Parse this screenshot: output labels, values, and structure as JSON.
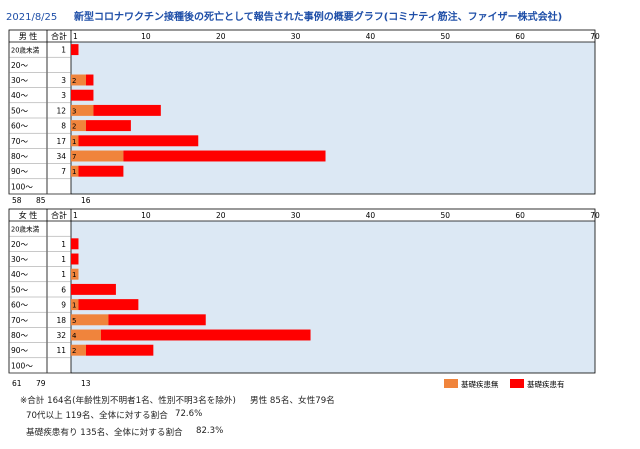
{
  "header": {
    "date": "2021/8/25",
    "title": "新型コロナワクチン接種後の死亡として報告された事例の概要グラフ(コミナティ筋注、ファイザー株式会社)"
  },
  "colors": {
    "without": "#f0843c",
    "with": "#ff0000",
    "plot_bg": "#dce8f4",
    "title": "#1f4fa8"
  },
  "chart_data": [
    {
      "type": "bar",
      "stacked": true,
      "orientation": "horizontal",
      "panel_label": "男 性",
      "total_header": "合計",
      "xlim": [
        0,
        70
      ],
      "xticks": [
        "1",
        "10",
        "20",
        "30",
        "40",
        "50",
        "60",
        "70"
      ],
      "xtick_values": [
        1,
        10,
        20,
        30,
        40,
        50,
        60,
        70
      ],
      "categories": [
        "20歳未満",
        "20～",
        "30～",
        "40～",
        "50～",
        "60～",
        "70～",
        "80～",
        "90～",
        "100～"
      ],
      "totals": [
        "1",
        "",
        "3",
        "3",
        "12",
        "8",
        "17",
        "34",
        "7",
        ""
      ],
      "series": [
        {
          "name": "基礎疾患無",
          "values": [
            0,
            0,
            2,
            0,
            3,
            2,
            1,
            7,
            1,
            0
          ],
          "labels": [
            "",
            "",
            "2",
            "",
            "3",
            "2",
            "1",
            "7",
            "1",
            ""
          ]
        },
        {
          "name": "基礎疾患有",
          "values": [
            1,
            0,
            1,
            3,
            9,
            6,
            16,
            27,
            6,
            0
          ]
        }
      ],
      "summary": [
        "58",
        "85",
        "16"
      ]
    },
    {
      "type": "bar",
      "stacked": true,
      "orientation": "horizontal",
      "panel_label": "女 性",
      "total_header": "合計",
      "xlim": [
        0,
        70
      ],
      "xticks": [
        "1",
        "10",
        "20",
        "30",
        "40",
        "50",
        "60",
        "70"
      ],
      "xtick_values": [
        1,
        10,
        20,
        30,
        40,
        50,
        60,
        70
      ],
      "categories": [
        "20歳未満",
        "20～",
        "30～",
        "40～",
        "50～",
        "60～",
        "70～",
        "80～",
        "90～",
        "100～"
      ],
      "totals": [
        "",
        "1",
        "1",
        "1",
        "6",
        "9",
        "18",
        "32",
        "11",
        ""
      ],
      "series": [
        {
          "name": "基礎疾患無",
          "values": [
            0,
            0,
            0,
            1,
            0,
            1,
            5,
            4,
            2,
            0
          ],
          "labels": [
            "",
            "",
            "",
            "1",
            "",
            "1",
            "5",
            "4",
            "2",
            ""
          ]
        },
        {
          "name": "基礎疾患有",
          "values": [
            0,
            1,
            1,
            0,
            6,
            8,
            13,
            28,
            9,
            0
          ]
        }
      ],
      "summary": [
        "61",
        "79",
        "13"
      ]
    }
  ],
  "legend": {
    "without_label": "基礎疾患無",
    "with_label": "基礎疾患有"
  },
  "footnotes": {
    "line1": "※合計 164名(年齢性別不明者1名、性別不明3名を除外)",
    "line1b": "男性 85名、女性79名",
    "line2": "70代以上 119名、全体に対する割合",
    "line2v": "72.6%",
    "line3": "基礎疾患有り 135名、全体に対する割合",
    "line3v": "82.3%"
  }
}
